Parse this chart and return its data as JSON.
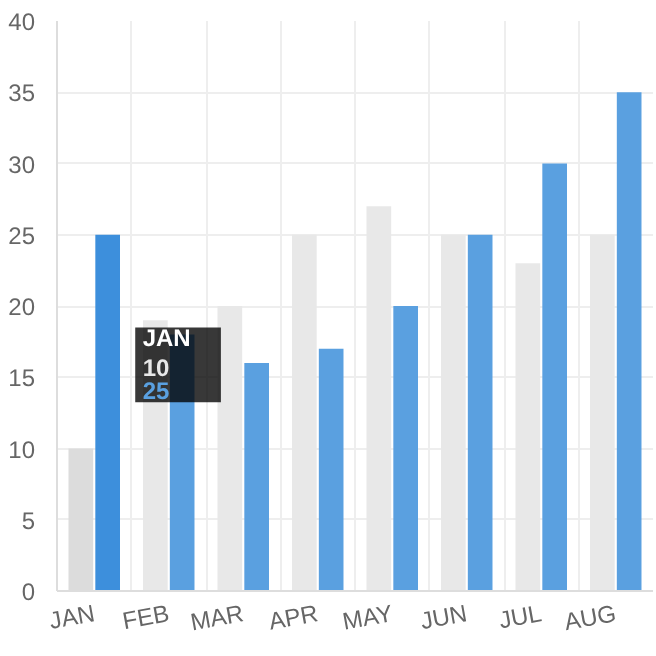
{
  "chart_data": {
    "type": "bar",
    "categories": [
      "JAN",
      "FEB",
      "MAR",
      "APR",
      "MAY",
      "JUN",
      "JUL",
      "AUG"
    ],
    "series": [
      {
        "color": "#e8e8e8",
        "colors": [
          "#dcdcdc",
          "#e8e8e8",
          "#e8e8e8",
          "#e8e8e8",
          "#e8e8e8",
          "#e8e8e8",
          "#e8e8e8",
          "#e8e8e8"
        ],
        "values": [
          10,
          19,
          20,
          25,
          27,
          25,
          23,
          25
        ]
      },
      {
        "color": "#5aa0e0",
        "colors": [
          "#3d8fdc",
          "#5aa0e0",
          "#5aa0e0",
          "#5aa0e0",
          "#5aa0e0",
          "#5aa0e0",
          "#5aa0e0",
          "#5aa0e0"
        ],
        "values": [
          25,
          18,
          16,
          17,
          20,
          25,
          30,
          35
        ]
      }
    ],
    "ylim": [
      0,
      40
    ],
    "yticks": [
      0,
      5,
      10,
      15,
      20,
      25,
      30,
      35,
      40
    ],
    "grid": true,
    "annotations": [
      "JAN",
      "10",
      "25"
    ]
  }
}
